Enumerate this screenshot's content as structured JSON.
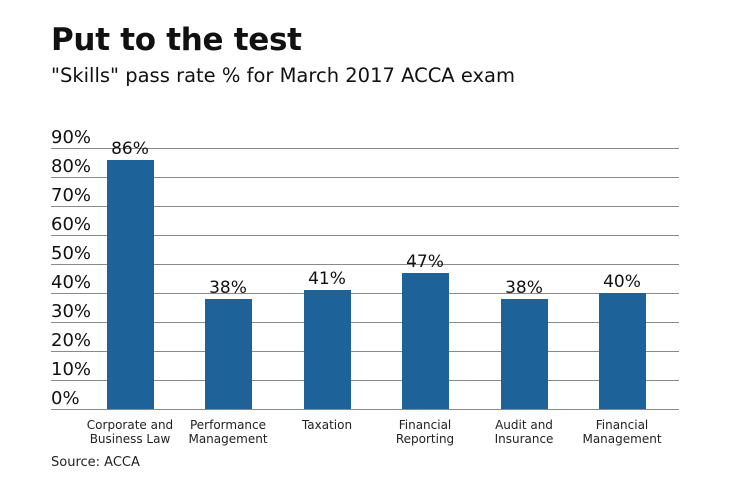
{
  "header": {
    "title": "Put to the test",
    "subtitle": "\"Skills\" pass rate % for March 2017 ACCA exam"
  },
  "footer": {
    "source": "Source: ACCA"
  },
  "colors": {
    "bar": "#1d6399",
    "gridline": "#8a8a8a",
    "text": "#111111"
  },
  "chart_data": {
    "type": "bar",
    "title": "Put to the test",
    "subtitle": "\"Skills\" pass rate % for March 2017 ACCA exam",
    "categories": [
      "Corporate and Business Law",
      "Performance Management",
      "Taxation",
      "Financial Reporting",
      "Audit and Insurance",
      "Financial Management"
    ],
    "category_lines": [
      [
        "Corporate and",
        "Business Law"
      ],
      [
        "Performance",
        "Management"
      ],
      [
        "Taxation",
        ""
      ],
      [
        "Financial",
        "Reporting"
      ],
      [
        "Audit and",
        "Insurance"
      ],
      [
        "Financial",
        "Management"
      ]
    ],
    "values": [
      86,
      38,
      41,
      47,
      38,
      40
    ],
    "value_labels": [
      "86%",
      "38%",
      "41%",
      "47%",
      "38%",
      "40%"
    ],
    "xlabel": "",
    "ylabel": "",
    "ylim": [
      0,
      90
    ],
    "yticks": [
      0,
      10,
      20,
      30,
      40,
      50,
      60,
      70,
      80,
      90
    ],
    "ytick_labels": [
      "0%",
      "10%",
      "20%",
      "30%",
      "40%",
      "50%",
      "60%",
      "70%",
      "80%",
      "90%"
    ],
    "grid": true,
    "legend": "none",
    "source": "Source: ACCA"
  }
}
